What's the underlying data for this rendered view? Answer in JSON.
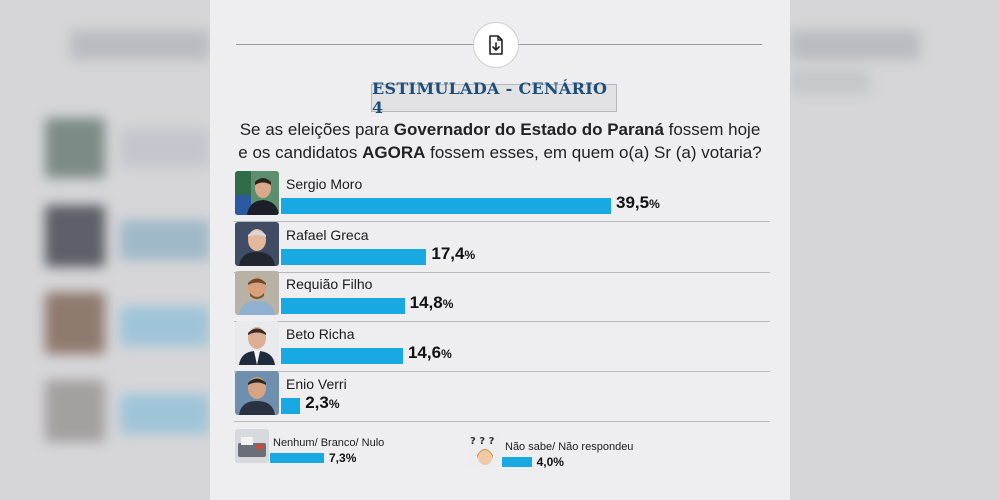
{
  "scenario_title": "ESTIMULADA - CENÁRIO 4",
  "question": {
    "line1_pre": "Se as eleições para ",
    "line1_bold": "Governador do Estado do Paraná",
    "line1_post": " fossem hoje",
    "line2_pre": "e os candidatos ",
    "line2_bold": "AGORA",
    "line2_post": " fossem esses, em quem o(a) Sr (a) votaria?"
  },
  "download_icon": "file-download-icon",
  "colors": {
    "bar": "#18a9e3",
    "title": "#1d4e7a"
  },
  "chart_data": {
    "type": "bar",
    "orientation": "horizontal",
    "title": "ESTIMULADA - CENÁRIO 4",
    "unit": "%",
    "series": [
      {
        "name": "Sergio Moro",
        "value": 39.5,
        "label": "39,5"
      },
      {
        "name": "Rafael Greca",
        "value": 17.4,
        "label": "17,4"
      },
      {
        "name": "Requião Filho",
        "value": 14.8,
        "label": "14,8"
      },
      {
        "name": "Beto Richa",
        "value": 14.6,
        "label": "14,6"
      },
      {
        "name": "Enio Verri",
        "value": 2.3,
        "label": "2,3"
      }
    ],
    "others": [
      {
        "name": "Nenhum/ Branco/ Nulo",
        "value": 7.3,
        "label": "7,3"
      },
      {
        "name": "Não sabe/ Não respondeu",
        "value": 4.0,
        "label": "4,0"
      }
    ]
  }
}
